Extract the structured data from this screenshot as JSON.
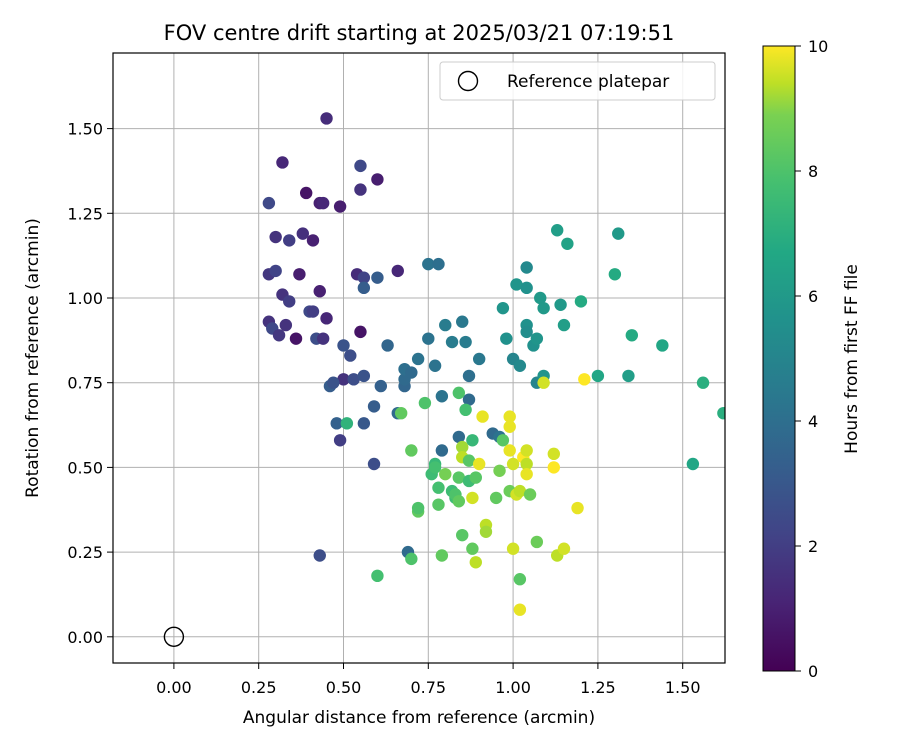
{
  "chart_data": {
    "type": "scatter",
    "title": "FOV centre drift starting at 2025/03/21 07:19:51",
    "xlabel": "Angular distance from reference (arcmin)",
    "ylabel": "Rotation from reference (arcmin)",
    "xlim": [
      -0.18,
      1.62
    ],
    "ylim": [
      -0.08,
      1.75
    ],
    "xticks": [
      "0.00",
      "0.25",
      "0.50",
      "0.75",
      "1.00",
      "1.25",
      "1.50"
    ],
    "yticks": [
      "0.00",
      "0.25",
      "0.50",
      "0.75",
      "1.00",
      "1.25",
      "1.50"
    ],
    "grid": true,
    "legend": {
      "location": "top-right",
      "entries": [
        "Reference platepar"
      ]
    },
    "colorbar": {
      "label": "Hours from first FF file",
      "range": [
        0,
        10
      ],
      "ticks": [
        "0",
        "2",
        "4",
        "6",
        "8",
        "10"
      ],
      "colormap": "viridis"
    },
    "reference_point": {
      "x": 0.0,
      "y": 0.0
    },
    "series": [
      {
        "points": [
          [
            0.28,
            1.28,
            2.4
          ],
          [
            0.32,
            1.4,
            1.2
          ],
          [
            0.39,
            1.31,
            0.6
          ],
          [
            0.45,
            1.53,
            1.4
          ],
          [
            0.43,
            1.28,
            1.0
          ],
          [
            0.49,
            1.27,
            0.9
          ],
          [
            0.55,
            1.39,
            2.4
          ],
          [
            0.55,
            1.32,
            1.6
          ],
          [
            0.6,
            1.35,
            0.9
          ],
          [
            0.3,
            1.18,
            1.6
          ],
          [
            0.34,
            1.17,
            2.0
          ],
          [
            0.38,
            1.19,
            1.5
          ],
          [
            0.41,
            1.17,
            1.0
          ],
          [
            0.44,
            1.28,
            1.2
          ],
          [
            0.28,
            1.07,
            1.8
          ],
          [
            0.3,
            1.08,
            2.2
          ],
          [
            0.37,
            1.07,
            0.9
          ],
          [
            0.32,
            1.01,
            1.6
          ],
          [
            0.34,
            0.99,
            2.0
          ],
          [
            0.4,
            0.96,
            2.4
          ],
          [
            0.41,
            0.96,
            2.0
          ],
          [
            0.43,
            1.02,
            1.0
          ],
          [
            0.45,
            0.94,
            1.2
          ],
          [
            0.28,
            0.93,
            1.6
          ],
          [
            0.29,
            0.91,
            2.4
          ],
          [
            0.31,
            0.89,
            1.8
          ],
          [
            0.33,
            0.92,
            1.6
          ],
          [
            0.36,
            0.88,
            0.6
          ],
          [
            0.42,
            0.88,
            2.6
          ],
          [
            0.44,
            0.88,
            1.6
          ],
          [
            0.54,
            1.07,
            1.4
          ],
          [
            0.56,
            1.06,
            2.2
          ],
          [
            0.56,
            1.03,
            3.2
          ],
          [
            0.6,
            1.06,
            3.2
          ],
          [
            0.66,
            1.08,
            1.2
          ],
          [
            0.55,
            0.9,
            0.6
          ],
          [
            0.5,
            0.86,
            2.8
          ],
          [
            0.52,
            0.83,
            2.6
          ],
          [
            0.5,
            0.76,
            1.6
          ],
          [
            0.53,
            0.76,
            2.6
          ],
          [
            0.56,
            0.77,
            2.8
          ],
          [
            0.46,
            0.74,
            3.2
          ],
          [
            0.47,
            0.75,
            2.8
          ],
          [
            0.48,
            0.63,
            3.4
          ],
          [
            0.49,
            0.58,
            2.0
          ],
          [
            0.56,
            0.63,
            3.0
          ],
          [
            0.59,
            0.68,
            3.2
          ],
          [
            0.59,
            0.51,
            2.6
          ],
          [
            0.43,
            0.24,
            2.6
          ],
          [
            0.61,
            0.74,
            3.4
          ],
          [
            0.63,
            0.86,
            3.6
          ],
          [
            0.66,
            0.66,
            3.8
          ],
          [
            0.68,
            0.74,
            3.6
          ],
          [
            0.68,
            0.76,
            3.8
          ],
          [
            0.68,
            0.79,
            4.0
          ],
          [
            0.7,
            0.78,
            3.8
          ],
          [
            0.72,
            0.82,
            4.2
          ],
          [
            0.75,
            0.88,
            4.2
          ],
          [
            0.75,
            1.1,
            4.2
          ],
          [
            0.78,
            1.1,
            4.0
          ],
          [
            0.77,
            0.8,
            4.2
          ],
          [
            0.79,
            0.71,
            4.2
          ],
          [
            0.8,
            0.92,
            4.6
          ],
          [
            0.82,
            0.87,
            4.6
          ],
          [
            0.84,
            0.59,
            3.8
          ],
          [
            0.79,
            0.55,
            3.8
          ],
          [
            0.85,
            0.93,
            4.4
          ],
          [
            0.86,
            0.87,
            4.6
          ],
          [
            0.87,
            0.77,
            4.0
          ],
          [
            0.87,
            0.7,
            3.8
          ],
          [
            0.9,
            0.82,
            4.4
          ],
          [
            0.94,
            0.6,
            3.8
          ],
          [
            0.96,
            0.59,
            4.2
          ],
          [
            0.97,
            0.97,
            5.8
          ],
          [
            0.98,
            0.88,
            5.6
          ],
          [
            0.69,
            0.25,
            3.8
          ],
          [
            1.0,
            0.82,
            5.0
          ],
          [
            1.01,
            1.04,
            5.8
          ],
          [
            1.02,
            0.8,
            5.2
          ],
          [
            1.04,
            1.09,
            5.2
          ],
          [
            1.04,
            1.03,
            5.6
          ],
          [
            1.04,
            0.92,
            5.6
          ],
          [
            1.04,
            0.9,
            5.4
          ],
          [
            1.06,
            0.86,
            5.6
          ],
          [
            1.07,
            0.88,
            5.8
          ],
          [
            1.07,
            0.75,
            5.0
          ],
          [
            1.08,
            1.0,
            6.0
          ],
          [
            1.09,
            0.97,
            6.0
          ],
          [
            1.09,
            0.77,
            5.8
          ],
          [
            1.13,
            1.2,
            6.2
          ],
          [
            1.14,
            0.98,
            6.0
          ],
          [
            1.15,
            0.92,
            6.2
          ],
          [
            1.16,
            1.16,
            6.4
          ],
          [
            1.2,
            0.99,
            6.8
          ],
          [
            1.25,
            0.77,
            6.6
          ],
          [
            1.3,
            1.07,
            6.8
          ],
          [
            1.31,
            1.19,
            6.0
          ],
          [
            1.34,
            0.77,
            6.2
          ],
          [
            1.35,
            0.89,
            6.8
          ],
          [
            1.44,
            0.86,
            6.6
          ],
          [
            1.53,
            0.51,
            6.6
          ],
          [
            1.56,
            0.75,
            7.0
          ],
          [
            1.62,
            0.66,
            7.0
          ],
          [
            0.51,
            0.63,
            7.2
          ],
          [
            0.6,
            0.18,
            7.8
          ],
          [
            0.67,
            0.66,
            8.4
          ],
          [
            0.7,
            0.55,
            8.4
          ],
          [
            0.7,
            0.23,
            8.0
          ],
          [
            0.72,
            0.37,
            8.4
          ],
          [
            0.72,
            0.38,
            8.0
          ],
          [
            0.74,
            0.69,
            8.0
          ],
          [
            0.76,
            0.48,
            7.6
          ],
          [
            0.77,
            0.51,
            7.4
          ],
          [
            0.77,
            0.5,
            7.8
          ],
          [
            0.78,
            0.44,
            7.8
          ],
          [
            0.78,
            0.39,
            8.2
          ],
          [
            0.79,
            0.24,
            8.4
          ],
          [
            0.8,
            0.48,
            8.8
          ],
          [
            0.82,
            0.43,
            7.6
          ],
          [
            0.83,
            0.41,
            7.6
          ],
          [
            0.83,
            0.42,
            8.0
          ],
          [
            0.84,
            0.47,
            8.2
          ],
          [
            0.84,
            0.4,
            8.4
          ],
          [
            0.84,
            0.72,
            8.0
          ],
          [
            0.85,
            0.56,
            9.2
          ],
          [
            0.85,
            0.53,
            9.4
          ],
          [
            0.86,
            0.67,
            7.8
          ],
          [
            0.87,
            0.52,
            8.2
          ],
          [
            0.87,
            0.46,
            7.6
          ],
          [
            0.85,
            0.3,
            8.2
          ],
          [
            0.88,
            0.58,
            7.4
          ],
          [
            0.88,
            0.41,
            9.6
          ],
          [
            0.88,
            0.26,
            8.4
          ],
          [
            0.89,
            0.47,
            8.2
          ],
          [
            0.89,
            0.22,
            9.4
          ],
          [
            0.9,
            0.51,
            9.8
          ],
          [
            0.91,
            0.65,
            9.8
          ],
          [
            0.92,
            0.33,
            9.4
          ],
          [
            0.92,
            0.31,
            9.2
          ],
          [
            0.95,
            0.41,
            8.4
          ],
          [
            0.96,
            0.49,
            8.8
          ],
          [
            0.97,
            0.58,
            8.2
          ],
          [
            0.99,
            0.65,
            9.8
          ],
          [
            0.99,
            0.62,
            9.8
          ],
          [
            0.99,
            0.55,
            9.8
          ],
          [
            1.0,
            0.51,
            9.6
          ],
          [
            0.99,
            0.43,
            8.6
          ],
          [
            1.0,
            0.26,
            9.6
          ],
          [
            1.01,
            0.42,
            9.6
          ],
          [
            1.02,
            0.43,
            9.4
          ],
          [
            1.02,
            0.17,
            8.2
          ],
          [
            1.02,
            0.08,
            9.8
          ],
          [
            1.03,
            0.53,
            10.0
          ],
          [
            1.04,
            0.55,
            9.6
          ],
          [
            1.04,
            0.51,
            9.4
          ],
          [
            1.04,
            0.48,
            9.8
          ],
          [
            1.05,
            0.42,
            8.6
          ],
          [
            1.07,
            0.28,
            8.6
          ],
          [
            1.09,
            0.75,
            9.6
          ],
          [
            1.12,
            0.54,
            9.6
          ],
          [
            1.12,
            0.5,
            10.0
          ],
          [
            1.13,
            0.24,
            9.4
          ],
          [
            1.15,
            0.26,
            9.6
          ],
          [
            1.19,
            0.38,
            9.8
          ],
          [
            1.21,
            0.76,
            10.0
          ]
        ]
      }
    ]
  }
}
